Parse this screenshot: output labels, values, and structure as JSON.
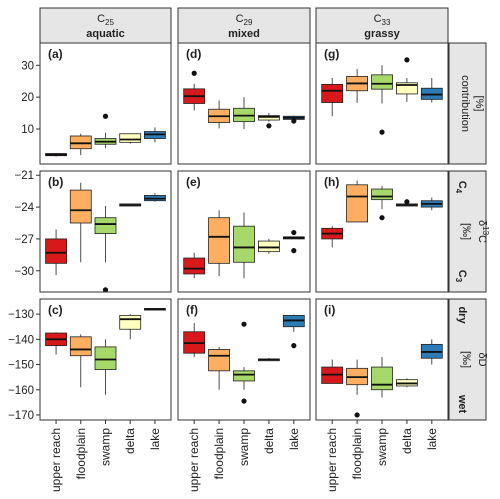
{
  "chart_data": {
    "type": "boxplot",
    "categories": [
      "upper reach",
      "floodplain",
      "swamp",
      "delta",
      "lake"
    ],
    "colors": [
      "#d7191c",
      "#fdae61",
      "#a6d96a",
      "#ffffbf",
      "#2c7bb6"
    ],
    "columns": [
      {
        "compound": "C",
        "subscript": "25",
        "label": "aquatic"
      },
      {
        "compound": "C",
        "subscript": "29",
        "label": "mixed"
      },
      {
        "compound": "C",
        "subscript": "33",
        "label": "grassy"
      }
    ],
    "rows": [
      {
        "name": "contribution",
        "unit": "[%]",
        "top_label": "",
        "bottom_label": "",
        "ylim": [
          -1,
          37
        ],
        "ticks": [
          10,
          20,
          30
        ]
      },
      {
        "name": "δ13C",
        "unit": "[‰]",
        "top_label": "C4",
        "bottom_label": "C3",
        "ylim": [
          -32,
          -20.6
        ],
        "ticks": [
          -21,
          -24,
          -27,
          -30
        ]
      },
      {
        "name": "δD",
        "unit": "[‰]",
        "top_label": "dry",
        "bottom_label": "wet",
        "ylim": [
          -172,
          -124
        ],
        "ticks": [
          -130,
          -140,
          -150,
          -160,
          -170
        ]
      }
    ],
    "panels": [
      {
        "id": "(a)",
        "row": 0,
        "col": 0,
        "boxes": [
          {
            "q1": 1.6,
            "med": 1.9,
            "q3": 2.3,
            "lo": 1.3,
            "hi": 2.4,
            "out": []
          },
          {
            "q1": 3.8,
            "med": 5.5,
            "q3": 7.8,
            "lo": 1.8,
            "hi": 8.5,
            "out": []
          },
          {
            "q1": 5.2,
            "med": 6.0,
            "q3": 7.0,
            "lo": 4.0,
            "hi": 8.8,
            "out": [
              14.0
            ]
          },
          {
            "q1": 5.8,
            "med": 6.7,
            "q3": 8.5,
            "lo": 5.4,
            "hi": 8.6,
            "out": []
          },
          {
            "q1": 7.0,
            "med": 8.3,
            "q3": 9.2,
            "lo": 5.8,
            "hi": 10.5,
            "out": []
          }
        ]
      },
      {
        "id": "(d)",
        "row": 0,
        "col": 1,
        "boxes": [
          {
            "q1": 18.0,
            "med": 20.3,
            "q3": 22.6,
            "lo": 15.8,
            "hi": 24.2,
            "out": [
              27.5
            ]
          },
          {
            "q1": 12.0,
            "med": 14.0,
            "q3": 16.2,
            "lo": 10.2,
            "hi": 19.0,
            "out": []
          },
          {
            "q1": 12.3,
            "med": 14.2,
            "q3": 16.5,
            "lo": 10.0,
            "hi": 20.0,
            "out": []
          },
          {
            "q1": 12.8,
            "med": 13.8,
            "q3": 14.2,
            "lo": 12.3,
            "hi": 15.0,
            "out": [
              11.0
            ]
          },
          {
            "q1": 13.0,
            "med": 13.5,
            "q3": 14.0,
            "lo": 12.7,
            "hi": 14.2,
            "out": [
              12.5
            ]
          }
        ]
      },
      {
        "id": "(g)",
        "row": 0,
        "col": 2,
        "boxes": [
          {
            "q1": 18.3,
            "med": 22.0,
            "q3": 24.0,
            "lo": 14.0,
            "hi": 26.0,
            "out": []
          },
          {
            "q1": 22.0,
            "med": 24.3,
            "q3": 26.5,
            "lo": 18.2,
            "hi": 28.8,
            "out": []
          },
          {
            "q1": 22.5,
            "med": 24.2,
            "q3": 27.0,
            "lo": 18.0,
            "hi": 30.0,
            "out": [
              9.0
            ]
          },
          {
            "q1": 21.0,
            "med": 23.8,
            "q3": 24.5,
            "lo": 18.5,
            "hi": 26.0,
            "out": [
              31.7
            ]
          },
          {
            "q1": 19.3,
            "med": 20.8,
            "q3": 22.8,
            "lo": 18.3,
            "hi": 26.0,
            "out": []
          }
        ]
      },
      {
        "id": "(b)",
        "row": 1,
        "col": 0,
        "boxes": [
          {
            "q1": -29.3,
            "med": -28.3,
            "q3": -27.0,
            "lo": -30.4,
            "hi": -26.1,
            "out": []
          },
          {
            "q1": -25.5,
            "med": -24.3,
            "q3": -22.4,
            "lo": -29.2,
            "hi": -21.7,
            "out": []
          },
          {
            "q1": -26.5,
            "med": -25.6,
            "q3": -25.0,
            "lo": -29.2,
            "hi": -23.9,
            "out": [
              -31.8
            ]
          },
          {
            "q1": -23.9,
            "med": -23.8,
            "q3": -23.7,
            "lo": -23.9,
            "hi": -23.7,
            "out": []
          },
          {
            "q1": -23.4,
            "med": -23.2,
            "q3": -22.9,
            "lo": -23.5,
            "hi": -22.7,
            "out": []
          }
        ]
      },
      {
        "id": "(e)",
        "row": 1,
        "col": 1,
        "boxes": [
          {
            "q1": -30.3,
            "med": -29.8,
            "q3": -28.8,
            "lo": -30.7,
            "hi": -28.3,
            "out": []
          },
          {
            "q1": -29.3,
            "med": -26.8,
            "q3": -25.0,
            "lo": -30.5,
            "hi": -24.3,
            "out": []
          },
          {
            "q1": -29.2,
            "med": -27.8,
            "q3": -25.8,
            "lo": -30.7,
            "hi": -24.5,
            "out": []
          },
          {
            "q1": -28.2,
            "med": -27.8,
            "q3": -27.2,
            "lo": -28.4,
            "hi": -27.0,
            "out": []
          },
          {
            "q1": -27.0,
            "med": -26.9,
            "q3": -26.8,
            "lo": -27.0,
            "hi": -26.8,
            "out": [
              -26.4,
              -28.1
            ]
          }
        ]
      },
      {
        "id": "(h)",
        "row": 1,
        "col": 2,
        "boxes": [
          {
            "q1": -27.0,
            "med": -26.5,
            "q3": -26.0,
            "lo": -27.8,
            "hi": -25.8,
            "out": []
          },
          {
            "q1": -25.4,
            "med": -23.0,
            "q3": -21.9,
            "lo": -25.4,
            "hi": -21.5,
            "out": []
          },
          {
            "q1": -23.3,
            "med": -23.0,
            "q3": -22.3,
            "lo": -24.2,
            "hi": -22.0,
            "out": [
              -25.0
            ]
          },
          {
            "q1": -23.9,
            "med": -23.8,
            "q3": -23.7,
            "lo": -23.9,
            "hi": -23.7,
            "out": [
              -23.5
            ]
          },
          {
            "q1": -24.0,
            "med": -23.7,
            "q3": -23.4,
            "lo": -24.3,
            "hi": -23.1,
            "out": []
          }
        ]
      },
      {
        "id": "(c)",
        "row": 2,
        "col": 0,
        "boxes": [
          {
            "q1": -142.5,
            "med": -140.0,
            "q3": -137.5,
            "lo": -146.0,
            "hi": -137.2,
            "out": []
          },
          {
            "q1": -146.5,
            "med": -144.0,
            "q3": -139.0,
            "lo": -159.0,
            "hi": -138.0,
            "out": []
          },
          {
            "q1": -152.0,
            "med": -148.0,
            "q3": -143.0,
            "lo": -162.0,
            "hi": -140.0,
            "out": []
          },
          {
            "q1": -136.0,
            "med": -132.0,
            "q3": -130.5,
            "lo": -140.0,
            "hi": -130.0,
            "out": []
          },
          {
            "q1": -128.2,
            "med": -128.0,
            "q3": -127.8,
            "lo": -128.2,
            "hi": -127.8,
            "out": []
          }
        ]
      },
      {
        "id": "(f)",
        "row": 2,
        "col": 1,
        "boxes": [
          {
            "q1": -145.5,
            "med": -141.5,
            "q3": -137.0,
            "lo": -147.0,
            "hi": -133.5,
            "out": []
          },
          {
            "q1": -152.5,
            "med": -146.5,
            "q3": -144.0,
            "lo": -160.0,
            "hi": -143.0,
            "out": []
          },
          {
            "q1": -156.5,
            "med": -154.0,
            "q3": -152.5,
            "lo": -160.0,
            "hi": -151.0,
            "out": [
              -134.0,
              -164.5
            ]
          },
          {
            "q1": -148.5,
            "med": -148.0,
            "q3": -147.8,
            "lo": -148.6,
            "hi": -147.4,
            "out": []
          },
          {
            "q1": -135.0,
            "med": -132.5,
            "q3": -130.5,
            "lo": -137.0,
            "hi": -130.2,
            "out": [
              -142.5
            ]
          }
        ]
      },
      {
        "id": "(i)",
        "row": 2,
        "col": 2,
        "boxes": [
          {
            "q1": -157.5,
            "med": -154.0,
            "q3": -151.0,
            "lo": -157.5,
            "hi": -148.0,
            "out": []
          },
          {
            "q1": -158.0,
            "med": -155.0,
            "q3": -151.5,
            "lo": -162.0,
            "hi": -148.0,
            "out": [
              -170.0
            ]
          },
          {
            "q1": -160.0,
            "med": -158.0,
            "q3": -151.0,
            "lo": -163.0,
            "hi": -147.0,
            "out": []
          },
          {
            "q1": -158.5,
            "med": -157.5,
            "q3": -156.0,
            "lo": -159.0,
            "hi": -155.5,
            "out": []
          },
          {
            "q1": -147.5,
            "med": -145.0,
            "q3": -142.0,
            "lo": -150.0,
            "hi": -140.0,
            "out": []
          }
        ]
      }
    ]
  }
}
